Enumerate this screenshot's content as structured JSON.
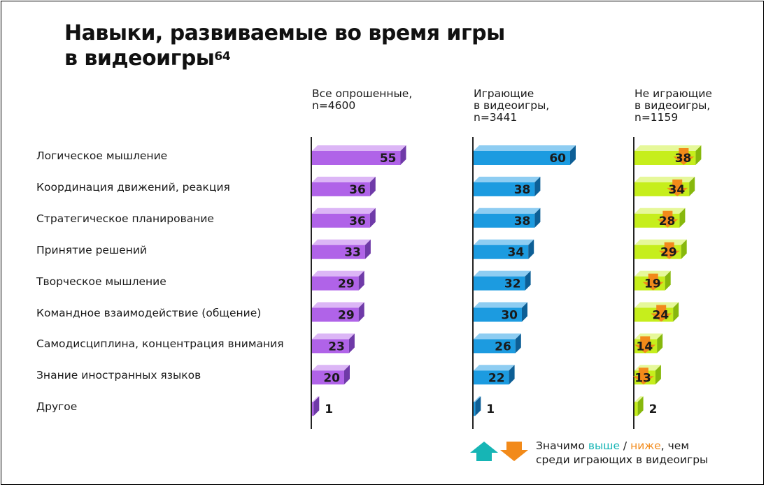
{
  "title_line1": "Навыки, развиваемые во время игры",
  "title_line2": "в видеоигры",
  "title_footnote": "64",
  "chart_data": {
    "type": "bar",
    "orientation": "horizontal",
    "categories": [
      "Логическое мышление",
      "Координация движений, реакция",
      "Стратегическое планирование",
      "Принятие решений",
      "Творческое мышление",
      "Командное взаимодействие (общение)",
      "Самодисциплина, концентрация внимания",
      "Знание иностранных языков",
      "Другое"
    ],
    "series": [
      {
        "name": "Все опрошенные,\nn=4600",
        "values": [
          55,
          36,
          36,
          33,
          29,
          29,
          23,
          20,
          1
        ],
        "color": "#b063e8",
        "color_dark": "#6f3aa8",
        "color_light": "#dcb6f6"
      },
      {
        "name": "Играющие\nв видеоигры,\nn=3441",
        "values": [
          60,
          38,
          38,
          34,
          32,
          30,
          26,
          22,
          1
        ],
        "color": "#1c9be0",
        "color_dark": "#0d5f96",
        "color_light": "#8ecdf2"
      },
      {
        "name": "Не играющие\nв видеоигры,\nn=1159",
        "values": [
          38,
          34,
          28,
          29,
          19,
          24,
          14,
          13,
          2
        ],
        "color": "#c6ee1c",
        "color_dark": "#87b80c",
        "color_light": "#e6f89a",
        "lower_than_players": [
          true,
          true,
          true,
          true,
          true,
          true,
          true,
          true,
          false
        ]
      }
    ],
    "xlim": [
      0,
      60
    ],
    "grid": false,
    "legend": {
      "up_color": "#16b5b5",
      "down_color": "#f28a1a",
      "text_before": "Значимо ",
      "up_word": "выше",
      "separator": " / ",
      "down_word": "ниже",
      "text_after": ", чем",
      "line2": "среди играющих в видеоигры"
    }
  }
}
